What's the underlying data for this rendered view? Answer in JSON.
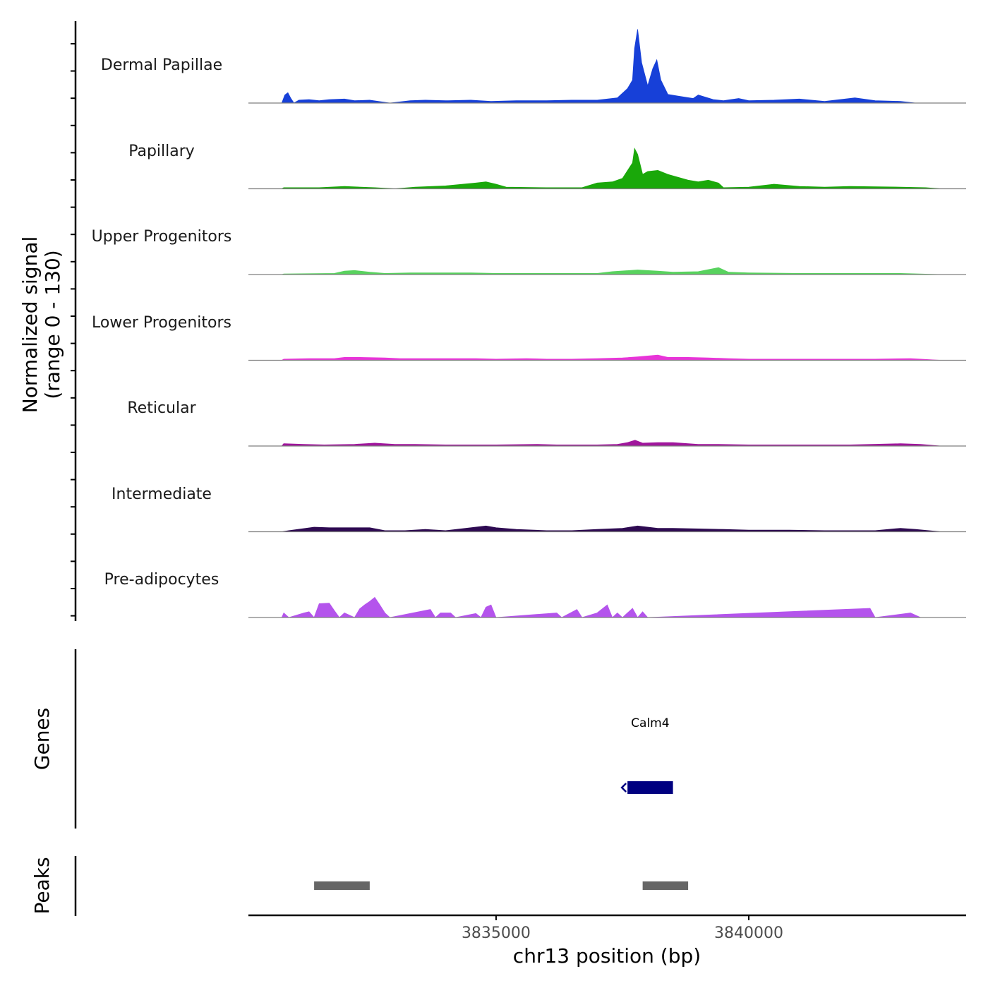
{
  "chart_data": {
    "type": "area",
    "chromosome": "chr13",
    "xlabel": "chr13 position (bp)",
    "ylabel": "Normalized signal",
    "ylabel_range": "(range 0 - 130)",
    "ylim": [
      0,
      130
    ],
    "xlim": [
      3830100,
      3844300
    ],
    "x_ticks": [
      3835000,
      3840000
    ],
    "x_tick_labels": [
      "3835000",
      "3840000"
    ],
    "colors": {
      "Dermal Papillae": "#1740d8",
      "Papillary": "#1aa80a",
      "Upper Progenitors": "#58d25e",
      "Lower Progenitors": "#e834d8",
      "Reticular": "#a0169c",
      "Intermediate": "#2e0a52",
      "Pre-adipocytes": "#b454ec"
    },
    "series": [
      {
        "name": "Dermal Papillae",
        "values": [
          [
            3830760,
            0
          ],
          [
            3830820,
            14
          ],
          [
            3830880,
            18
          ],
          [
            3830940,
            8
          ],
          [
            3831000,
            0
          ],
          [
            3831100,
            5
          ],
          [
            3831300,
            6
          ],
          [
            3831500,
            4
          ],
          [
            3831700,
            6
          ],
          [
            3832000,
            7
          ],
          [
            3832200,
            4
          ],
          [
            3832500,
            5
          ],
          [
            3832900,
            0
          ],
          [
            3833300,
            4
          ],
          [
            3833600,
            5
          ],
          [
            3834000,
            4
          ],
          [
            3834500,
            5
          ],
          [
            3834900,
            3
          ],
          [
            3835400,
            4
          ],
          [
            3836000,
            4
          ],
          [
            3836500,
            5
          ],
          [
            3837000,
            5
          ],
          [
            3837400,
            9
          ],
          [
            3837600,
            25
          ],
          [
            3837700,
            40
          ],
          [
            3837740,
            95
          ],
          [
            3837800,
            128
          ],
          [
            3837880,
            70
          ],
          [
            3838000,
            30
          ],
          [
            3838100,
            60
          ],
          [
            3838180,
            75
          ],
          [
            3838260,
            40
          ],
          [
            3838400,
            15
          ],
          [
            3838600,
            12
          ],
          [
            3838900,
            8
          ],
          [
            3839000,
            14
          ],
          [
            3839300,
            6
          ],
          [
            3839500,
            4
          ],
          [
            3839800,
            8
          ],
          [
            3840000,
            4
          ],
          [
            3840500,
            5
          ],
          [
            3841000,
            7
          ],
          [
            3841500,
            3
          ],
          [
            3842100,
            9
          ],
          [
            3842500,
            4
          ],
          [
            3843000,
            3
          ],
          [
            3843300,
            0
          ]
        ]
      },
      {
        "name": "Papillary",
        "values": [
          [
            3830760,
            0
          ],
          [
            3830800,
            2
          ],
          [
            3831500,
            2
          ],
          [
            3832000,
            4
          ],
          [
            3832600,
            2
          ],
          [
            3833000,
            0
          ],
          [
            3833400,
            3
          ],
          [
            3834000,
            5
          ],
          [
            3834600,
            10
          ],
          [
            3834800,
            12
          ],
          [
            3835000,
            8
          ],
          [
            3835200,
            3
          ],
          [
            3836000,
            2
          ],
          [
            3836700,
            2
          ],
          [
            3837000,
            10
          ],
          [
            3837300,
            12
          ],
          [
            3837500,
            18
          ],
          [
            3837700,
            45
          ],
          [
            3837740,
            70
          ],
          [
            3837800,
            60
          ],
          [
            3837900,
            25
          ],
          [
            3838000,
            30
          ],
          [
            3838200,
            32
          ],
          [
            3838400,
            25
          ],
          [
            3838800,
            15
          ],
          [
            3839000,
            12
          ],
          [
            3839200,
            15
          ],
          [
            3839400,
            10
          ],
          [
            3839500,
            2
          ],
          [
            3840000,
            3
          ],
          [
            3840500,
            8
          ],
          [
            3841000,
            4
          ],
          [
            3841500,
            3
          ],
          [
            3842000,
            4
          ],
          [
            3843000,
            3
          ],
          [
            3843500,
            2
          ],
          [
            3843800,
            0
          ]
        ]
      },
      {
        "name": "Upper Progenitors",
        "values": [
          [
            3830760,
            0
          ],
          [
            3830800,
            1
          ],
          [
            3831800,
            2
          ],
          [
            3832000,
            6
          ],
          [
            3832200,
            7
          ],
          [
            3832500,
            4
          ],
          [
            3832800,
            2
          ],
          [
            3833300,
            3
          ],
          [
            3834000,
            3
          ],
          [
            3834500,
            3
          ],
          [
            3835000,
            2
          ],
          [
            3836000,
            2
          ],
          [
            3837000,
            2
          ],
          [
            3837300,
            5
          ],
          [
            3837800,
            8
          ],
          [
            3838200,
            6
          ],
          [
            3838500,
            4
          ],
          [
            3839000,
            5
          ],
          [
            3839400,
            12
          ],
          [
            3839600,
            4
          ],
          [
            3840000,
            3
          ],
          [
            3841000,
            2
          ],
          [
            3842000,
            2
          ],
          [
            3843000,
            2
          ],
          [
            3843800,
            0
          ]
        ]
      },
      {
        "name": "Lower Progenitors",
        "values": [
          [
            3830760,
            0
          ],
          [
            3830800,
            2
          ],
          [
            3831300,
            3
          ],
          [
            3831800,
            3
          ],
          [
            3832000,
            5
          ],
          [
            3832300,
            5
          ],
          [
            3832800,
            4
          ],
          [
            3833100,
            3
          ],
          [
            3833600,
            3
          ],
          [
            3834000,
            3
          ],
          [
            3834600,
            3
          ],
          [
            3835000,
            2
          ],
          [
            3835600,
            3
          ],
          [
            3836000,
            2
          ],
          [
            3836500,
            2
          ],
          [
            3837000,
            3
          ],
          [
            3837500,
            4
          ],
          [
            3837800,
            6
          ],
          [
            3838200,
            9
          ],
          [
            3838400,
            5
          ],
          [
            3838800,
            5
          ],
          [
            3839200,
            4
          ],
          [
            3839600,
            3
          ],
          [
            3840000,
            2
          ],
          [
            3841000,
            2
          ],
          [
            3842500,
            2
          ],
          [
            3843200,
            3
          ],
          [
            3843800,
            0
          ]
        ]
      },
      {
        "name": "Reticular",
        "values": [
          [
            3830760,
            0
          ],
          [
            3830800,
            4
          ],
          [
            3831200,
            3
          ],
          [
            3831600,
            2
          ],
          [
            3832200,
            3
          ],
          [
            3832600,
            5
          ],
          [
            3833000,
            3
          ],
          [
            3833400,
            3
          ],
          [
            3834000,
            2
          ],
          [
            3835000,
            2
          ],
          [
            3835800,
            3
          ],
          [
            3836200,
            2
          ],
          [
            3837000,
            2
          ],
          [
            3837400,
            3
          ],
          [
            3837600,
            6
          ],
          [
            3837750,
            10
          ],
          [
            3837900,
            5
          ],
          [
            3838200,
            6
          ],
          [
            3838500,
            6
          ],
          [
            3839000,
            3
          ],
          [
            3839400,
            3
          ],
          [
            3840000,
            2
          ],
          [
            3841000,
            2
          ],
          [
            3842000,
            2
          ],
          [
            3843000,
            4
          ],
          [
            3843400,
            3
          ],
          [
            3843800,
            0
          ]
        ]
      },
      {
        "name": "Intermediate",
        "values": [
          [
            3830760,
            0
          ],
          [
            3830900,
            2
          ],
          [
            3831400,
            8
          ],
          [
            3831700,
            7
          ],
          [
            3832000,
            7
          ],
          [
            3832500,
            7
          ],
          [
            3832800,
            2
          ],
          [
            3833200,
            2
          ],
          [
            3833600,
            4
          ],
          [
            3834000,
            2
          ],
          [
            3834800,
            10
          ],
          [
            3835000,
            7
          ],
          [
            3835400,
            4
          ],
          [
            3836000,
            2
          ],
          [
            3836500,
            2
          ],
          [
            3837000,
            4
          ],
          [
            3837500,
            6
          ],
          [
            3837800,
            10
          ],
          [
            3838200,
            6
          ],
          [
            3838500,
            6
          ],
          [
            3839000,
            5
          ],
          [
            3839500,
            4
          ],
          [
            3840000,
            3
          ],
          [
            3840800,
            3
          ],
          [
            3841500,
            2
          ],
          [
            3842500,
            2
          ],
          [
            3843000,
            6
          ],
          [
            3843300,
            4
          ],
          [
            3843800,
            0
          ]
        ]
      },
      {
        "name": "Pre-adipocytes",
        "values": [
          [
            3830760,
            0
          ],
          [
            3830800,
            8
          ],
          [
            3830900,
            0
          ],
          [
            3831200,
            8
          ],
          [
            3831300,
            10
          ],
          [
            3831400,
            0
          ],
          [
            3831500,
            24
          ],
          [
            3831700,
            25
          ],
          [
            3831800,
            12
          ],
          [
            3831900,
            0
          ],
          [
            3832000,
            8
          ],
          [
            3832200,
            0
          ],
          [
            3832300,
            15
          ],
          [
            3832400,
            22
          ],
          [
            3832500,
            28
          ],
          [
            3832600,
            35
          ],
          [
            3832700,
            22
          ],
          [
            3832800,
            8
          ],
          [
            3832900,
            0
          ],
          [
            3833700,
            14
          ],
          [
            3833800,
            0
          ],
          [
            3833900,
            8
          ],
          [
            3834100,
            8
          ],
          [
            3834200,
            0
          ],
          [
            3834600,
            7
          ],
          [
            3834700,
            0
          ],
          [
            3834800,
            18
          ],
          [
            3834900,
            22
          ],
          [
            3835000,
            0
          ],
          [
            3836200,
            8
          ],
          [
            3836300,
            0
          ],
          [
            3836600,
            14
          ],
          [
            3836700,
            0
          ],
          [
            3837000,
            8
          ],
          [
            3837200,
            22
          ],
          [
            3837300,
            0
          ],
          [
            3837400,
            8
          ],
          [
            3837500,
            0
          ],
          [
            3837700,
            16
          ],
          [
            3837800,
            0
          ],
          [
            3837900,
            10
          ],
          [
            3838000,
            0
          ],
          [
            3842400,
            16
          ],
          [
            3842500,
            0
          ],
          [
            3843200,
            8
          ],
          [
            3843400,
            0
          ]
        ]
      }
    ],
    "genes": [
      {
        "name": "Calm4",
        "start": 3837600,
        "end": 3838500,
        "strand": "-"
      }
    ],
    "peaks": [
      {
        "start": 3831400,
        "end": 3832500
      },
      {
        "start": 3837900,
        "end": 3838800
      }
    ],
    "panels": {
      "genes_title": "Genes",
      "peaks_title": "Peaks"
    }
  }
}
